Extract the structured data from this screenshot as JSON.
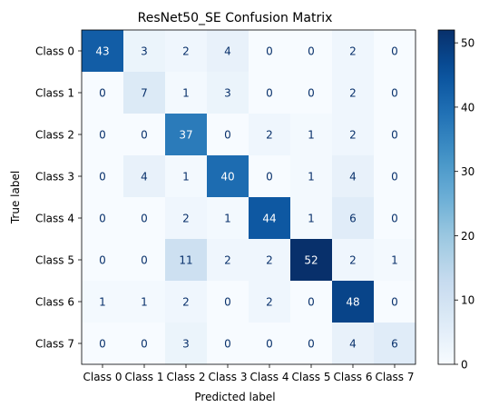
{
  "chart_data": {
    "type": "heatmap",
    "title": "ResNet50_SE Confusion Matrix",
    "xlabel": "Predicted label",
    "ylabel": "True label",
    "x_categories": [
      "Class 0",
      "Class 1",
      "Class 2",
      "Class 3",
      "Class 4",
      "Class 5",
      "Class 6",
      "Class 7"
    ],
    "y_categories": [
      "Class 0",
      "Class 1",
      "Class 2",
      "Class 3",
      "Class 4",
      "Class 5",
      "Class 6",
      "Class 7"
    ],
    "values": [
      [
        43,
        3,
        2,
        4,
        0,
        0,
        2,
        0
      ],
      [
        0,
        7,
        1,
        3,
        0,
        0,
        2,
        0
      ],
      [
        0,
        0,
        37,
        0,
        2,
        1,
        2,
        0
      ],
      [
        0,
        4,
        1,
        40,
        0,
        1,
        4,
        0
      ],
      [
        0,
        0,
        2,
        1,
        44,
        1,
        6,
        0
      ],
      [
        0,
        0,
        11,
        2,
        2,
        52,
        2,
        1
      ],
      [
        1,
        1,
        2,
        0,
        2,
        0,
        48,
        0
      ],
      [
        0,
        0,
        3,
        0,
        0,
        0,
        4,
        6
      ]
    ],
    "colormap": "Blues",
    "value_range": [
      0,
      52
    ],
    "colorbar_ticks": [
      0,
      10,
      20,
      30,
      40,
      50
    ],
    "colorbar_tick_labels": [
      "0",
      "10",
      "20",
      "30",
      "40",
      "50"
    ],
    "grid": false,
    "colors": {
      "low": "#f7fbff",
      "high": "#08306b",
      "text_dark": "#08306b",
      "text_light": "#ffffff"
    }
  }
}
